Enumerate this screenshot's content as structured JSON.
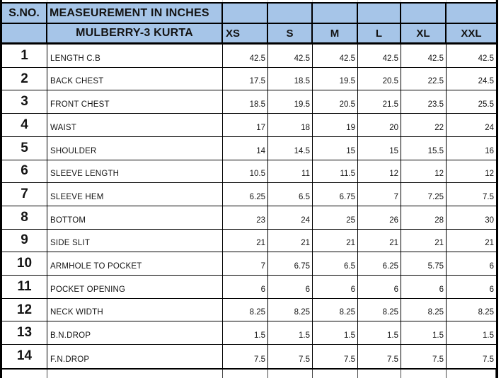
{
  "sheet": {
    "header": {
      "sno_label": "S.NO.",
      "title": "MEASEUREMENT IN INCHES",
      "product": "MULBERRY-3 KURTA",
      "sizes": [
        "XS",
        "S",
        "M",
        "L",
        "XL",
        "XXL"
      ]
    },
    "rows": [
      {
        "no": "1",
        "name": "LENGTH C.B",
        "values": [
          "42.5",
          "42.5",
          "42.5",
          "42.5",
          "42.5",
          "42.5"
        ]
      },
      {
        "no": "2",
        "name": "BACK CHEST",
        "values": [
          "17.5",
          "18.5",
          "19.5",
          "20.5",
          "22.5",
          "24.5"
        ]
      },
      {
        "no": "3",
        "name": "FRONT CHEST",
        "values": [
          "18.5",
          "19.5",
          "20.5",
          "21.5",
          "23.5",
          "25.5"
        ]
      },
      {
        "no": "4",
        "name": "WAIST",
        "values": [
          "17",
          "18",
          "19",
          "20",
          "22",
          "24"
        ]
      },
      {
        "no": "5",
        "name": "SHOULDER",
        "values": [
          "14",
          "14.5",
          "15",
          "15",
          "15.5",
          "16"
        ]
      },
      {
        "no": "6",
        "name": "SLEEVE LENGTH",
        "values": [
          "10.5",
          "11",
          "11.5",
          "12",
          "12",
          "12"
        ]
      },
      {
        "no": "7",
        "name": "SLEEVE HEM",
        "values": [
          "6.25",
          "6.5",
          "6.75",
          "7",
          "7.25",
          "7.5"
        ]
      },
      {
        "no": "8",
        "name": "BOTTOM",
        "values": [
          "23",
          "24",
          "25",
          "26",
          "28",
          "30"
        ]
      },
      {
        "no": "9",
        "name": "SIDE SLIT",
        "values": [
          "21",
          "21",
          "21",
          "21",
          "21",
          "21"
        ]
      },
      {
        "no": "10",
        "name": "ARMHOLE TO POCKET",
        "values": [
          "7",
          "6.75",
          "6.5",
          "6.25",
          "5.75",
          "6"
        ]
      },
      {
        "no": "11",
        "name": "POCKET OPENING",
        "values": [
          "6",
          "6",
          "6",
          "6",
          "6",
          "6"
        ]
      },
      {
        "no": "12",
        "name": "NECK WIDTH",
        "values": [
          "8.25",
          "8.25",
          "8.25",
          "8.25",
          "8.25",
          "8.25"
        ]
      },
      {
        "no": "13",
        "name": "B.N.DROP",
        "values": [
          "1.5",
          "1.5",
          "1.5",
          "1.5",
          "1.5",
          "1.5"
        ]
      },
      {
        "no": "14",
        "name": "F.N.DROP",
        "values": [
          "7.5",
          "7.5",
          "7.5",
          "7.5",
          "7.5",
          "7.5"
        ]
      }
    ]
  },
  "colors": {
    "header_fill": "#a6c5e8",
    "border": "#000000",
    "text": "#141414"
  }
}
